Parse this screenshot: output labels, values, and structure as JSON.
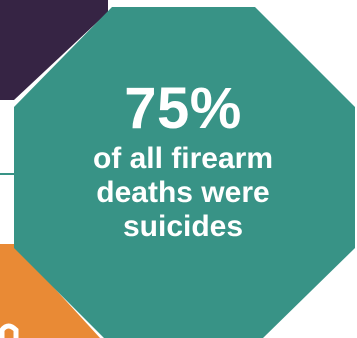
{
  "infographic": {
    "stat": {
      "percent": "75%",
      "caption_lines": [
        "of all firearm",
        "deaths were",
        "suicides"
      ]
    },
    "colors": {
      "background": "#ffffff",
      "main_octagon": "#389386",
      "top_left_shape": "#362444",
      "bottom_left_shape": "#e98a35",
      "connector_line": "#389386",
      "text": "#ffffff"
    }
  }
}
